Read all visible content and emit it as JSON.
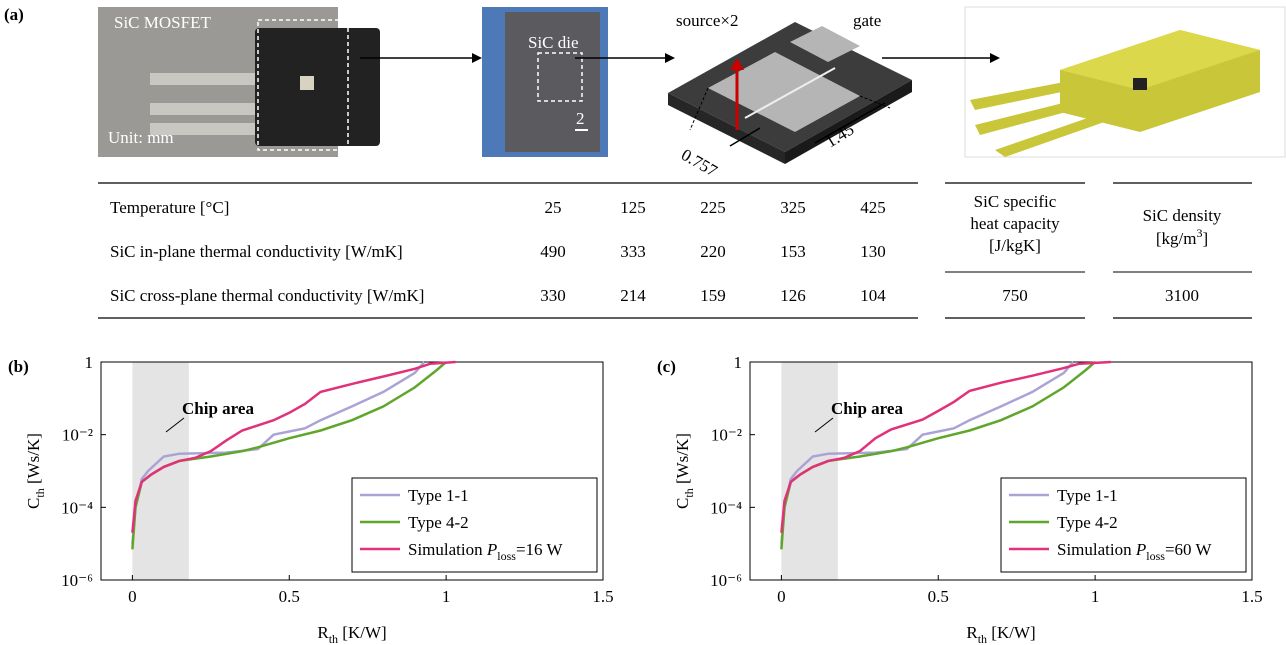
{
  "panel_a": {
    "label": "(a)",
    "photo1": {
      "title": "SiC MOSFET",
      "unit": "Unit: mm"
    },
    "photo2": {
      "label": "SiC die",
      "scale": "2"
    },
    "schematic": {
      "source": "source×2",
      "gate": "gate",
      "dim1": "0.757",
      "dim2": "1.45"
    }
  },
  "table": {
    "header": [
      "Temperature [°C]",
      25,
      125,
      225,
      325,
      425
    ],
    "rows": [
      [
        "SiC in-plane thermal conductivity [W/mK]",
        490,
        333,
        220,
        153,
        130
      ],
      [
        "SiC cross-plane thermal conductivity [W/mK]",
        330,
        214,
        159,
        126,
        104
      ]
    ],
    "heat_capacity": {
      "header": [
        "SiC specific",
        "heat capacity",
        "[J/kgK]"
      ],
      "value": 750
    },
    "density": {
      "header": [
        "SiC density",
        "[kg/m",
        "3",
        "]"
      ],
      "value": 3100
    }
  },
  "chart_data": [
    {
      "type": "line",
      "panel": "(b)",
      "annotation": "Chip area",
      "shade_x": [
        0,
        0.18
      ],
      "xlabel": [
        "R",
        "th",
        " [K/W]"
      ],
      "ylabel": [
        "C",
        "th",
        " [Ws/K]"
      ],
      "xlim": [
        -0.1,
        1.5
      ],
      "ylim": [
        1e-06,
        1
      ],
      "ylog": true,
      "xticks": [
        0,
        0.5,
        1,
        1.5
      ],
      "yticks": [
        {
          "value": 1e-06,
          "label": "10⁻⁶"
        },
        {
          "value": 0.0001,
          "label": "10⁻⁴"
        },
        {
          "value": 0.01,
          "label": "10⁻²"
        },
        1
      ],
      "series": [
        {
          "name": "Type 1-1",
          "color": "#a9a3d6",
          "x": [
            0,
            0.01,
            0.03,
            0.05,
            0.1,
            0.15,
            0.3,
            0.4,
            0.45,
            0.55,
            0.6,
            0.7,
            0.8,
            0.9,
            0.93
          ],
          "values": [
            1e-05,
            0.0001,
            0.0006,
            0.001,
            0.0025,
            0.003,
            0.0032,
            0.004,
            0.01,
            0.015,
            0.025,
            0.06,
            0.15,
            0.5,
            1
          ]
        },
        {
          "name": "Type 4-2",
          "color": "#5fa62b",
          "x": [
            0,
            0.01,
            0.03,
            0.06,
            0.1,
            0.15,
            0.25,
            0.35,
            0.4,
            0.5,
            0.6,
            0.7,
            0.8,
            0.9,
            0.97,
            1.0
          ],
          "values": [
            7e-06,
            0.0001,
            0.0005,
            0.0008,
            0.0013,
            0.0019,
            0.0025,
            0.0035,
            0.0045,
            0.008,
            0.013,
            0.025,
            0.06,
            0.2,
            0.6,
            1
          ]
        },
        {
          "name": [
            "Simulation ",
            "P",
            "loss",
            "=16 W"
          ],
          "color": "#e0317a",
          "x": [
            0,
            0.01,
            0.03,
            0.06,
            0.1,
            0.15,
            0.2,
            0.25,
            0.3,
            0.35,
            0.45,
            0.5,
            0.55,
            0.6,
            0.7,
            0.8,
            0.9,
            0.95,
            1.03
          ],
          "values": [
            2e-05,
            0.00015,
            0.0005,
            0.0008,
            0.0013,
            0.0019,
            0.0023,
            0.0035,
            0.007,
            0.013,
            0.025,
            0.04,
            0.07,
            0.15,
            0.25,
            0.4,
            0.65,
            0.9,
            1
          ]
        }
      ]
    },
    {
      "type": "line",
      "panel": "(c)",
      "annotation": "Chip area",
      "shade_x": [
        0,
        0.18
      ],
      "xlabel": [
        "R",
        "th",
        " [K/W]"
      ],
      "ylabel": [
        "C",
        "th",
        " [Ws/K]"
      ],
      "xlim": [
        -0.1,
        1.5
      ],
      "ylim": [
        1e-06,
        1
      ],
      "ylog": true,
      "xticks": [
        0,
        0.5,
        1,
        1.5
      ],
      "yticks": [
        {
          "value": 1e-06,
          "label": "10⁻⁶"
        },
        {
          "value": 0.0001,
          "label": "10⁻⁴"
        },
        {
          "value": 0.01,
          "label": "10⁻²"
        },
        1
      ],
      "series": [
        {
          "name": "Type 1-1",
          "color": "#a9a3d6",
          "x": [
            0,
            0.01,
            0.03,
            0.05,
            0.1,
            0.15,
            0.3,
            0.4,
            0.45,
            0.55,
            0.6,
            0.7,
            0.8,
            0.9,
            0.93
          ],
          "values": [
            1e-05,
            0.0001,
            0.0006,
            0.001,
            0.0025,
            0.003,
            0.0032,
            0.004,
            0.01,
            0.015,
            0.025,
            0.06,
            0.15,
            0.5,
            1
          ]
        },
        {
          "name": "Type 4-2",
          "color": "#5fa62b",
          "x": [
            0,
            0.01,
            0.03,
            0.06,
            0.1,
            0.15,
            0.25,
            0.35,
            0.4,
            0.5,
            0.6,
            0.7,
            0.8,
            0.9,
            0.97,
            1.0
          ],
          "values": [
            7e-06,
            0.0001,
            0.0005,
            0.0008,
            0.0013,
            0.0019,
            0.0025,
            0.0035,
            0.0045,
            0.008,
            0.013,
            0.025,
            0.06,
            0.2,
            0.6,
            1
          ]
        },
        {
          "name": [
            "Simulation ",
            "P",
            "loss",
            "=60 W"
          ],
          "color": "#e0317a",
          "x": [
            0,
            0.01,
            0.03,
            0.06,
            0.1,
            0.15,
            0.2,
            0.25,
            0.3,
            0.35,
            0.45,
            0.5,
            0.55,
            0.6,
            0.7,
            0.8,
            0.9,
            0.95,
            1.05
          ],
          "values": [
            2e-05,
            0.00015,
            0.0005,
            0.0008,
            0.0013,
            0.0019,
            0.0023,
            0.0035,
            0.008,
            0.014,
            0.026,
            0.045,
            0.08,
            0.16,
            0.27,
            0.42,
            0.68,
            0.9,
            1
          ]
        }
      ]
    }
  ]
}
